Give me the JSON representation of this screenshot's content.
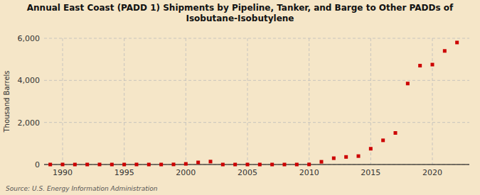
{
  "chart_data": {
    "type": "scatter",
    "title": "Annual East Coast (PADD 1) Shipments by Pipeline, Tanker, and Barge to Other PADDs of\nIsobutane-Isobutylene",
    "y_label": "Thousand Barrels",
    "annotations": [
      "Source: U.S. Energy Information Administration"
    ],
    "x": [
      1989,
      1990,
      1991,
      1992,
      1993,
      1994,
      1995,
      1996,
      1997,
      1998,
      1999,
      2000,
      2001,
      2002,
      2003,
      2004,
      2005,
      2006,
      2007,
      2008,
      2009,
      2010,
      2011,
      2012,
      2013,
      2014,
      2015,
      2016,
      2017,
      2018,
      2019,
      2020,
      2021,
      2022
    ],
    "values": [
      0,
      2,
      0,
      0,
      2,
      0,
      0,
      2,
      0,
      0,
      5,
      30,
      100,
      140,
      0,
      0,
      0,
      0,
      0,
      0,
      0,
      5,
      130,
      300,
      360,
      400,
      750,
      1150,
      1500,
      3850,
      4700,
      4750,
      5400,
      5800
    ],
    "color": "#cc0000",
    "marker": "square",
    "xlim": [
      1988.5,
      2023
    ],
    "ylim": [
      0,
      6000
    ],
    "xticks": [
      1990,
      1995,
      2000,
      2005,
      2010,
      2015,
      2020
    ],
    "yticks": [
      0,
      {
        "value": 2000,
        "label": "2,000"
      },
      {
        "value": 4000,
        "label": "4,000"
      },
      {
        "value": 6000,
        "label": "6,000"
      }
    ],
    "grid": true
  }
}
